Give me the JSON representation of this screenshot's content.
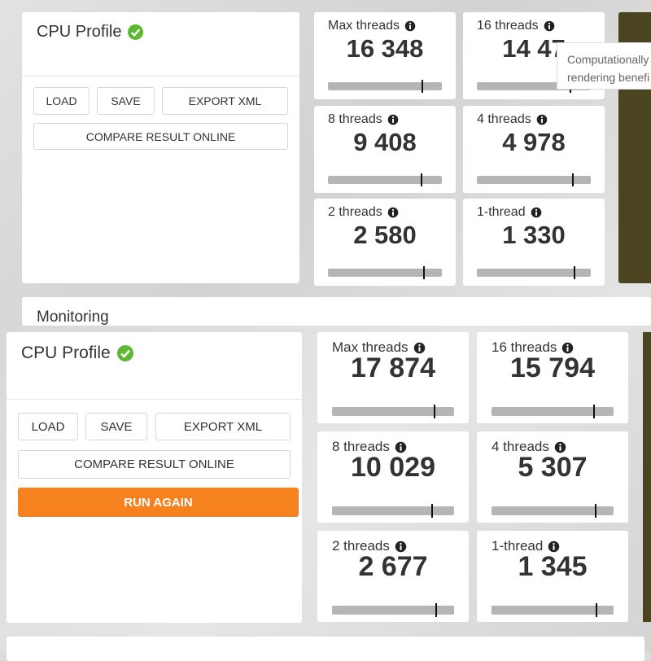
{
  "top_panel": {
    "profile": {
      "title": "CPU Profile",
      "buttons": [
        "LOAD",
        "SAVE",
        "EXPORT XML",
        "COMPARE RESULT ONLINE"
      ]
    },
    "scores": [
      {
        "label": "Max threads",
        "score": "16 348"
      },
      {
        "label": "16 threads",
        "score": "14 47"
      },
      {
        "label": "8 threads",
        "score": "9 408"
      },
      {
        "label": "4 threads",
        "score": "4 978"
      },
      {
        "label": "2 threads",
        "score": "2 580"
      },
      {
        "label": "1-thread",
        "score": "1 330"
      }
    ],
    "tooltip": [
      "Computationally",
      "rendering benefi"
    ],
    "section_heading": "Monitoring"
  },
  "bottom_panel": {
    "profile": {
      "title": "CPU Profile",
      "buttons": [
        "LOAD",
        "SAVE",
        "EXPORT XML",
        "COMPARE RESULT ONLINE",
        "RUN AGAIN"
      ]
    },
    "scores": [
      {
        "label": "Max threads",
        "score": "17 874"
      },
      {
        "label": "16 threads",
        "score": "15 794"
      },
      {
        "label": "8 threads",
        "score": "10 029"
      },
      {
        "label": "4 threads",
        "score": "5 307"
      },
      {
        "label": "2 threads",
        "score": "2 677"
      },
      {
        "label": "1-thread",
        "score": "1 345"
      }
    ]
  }
}
